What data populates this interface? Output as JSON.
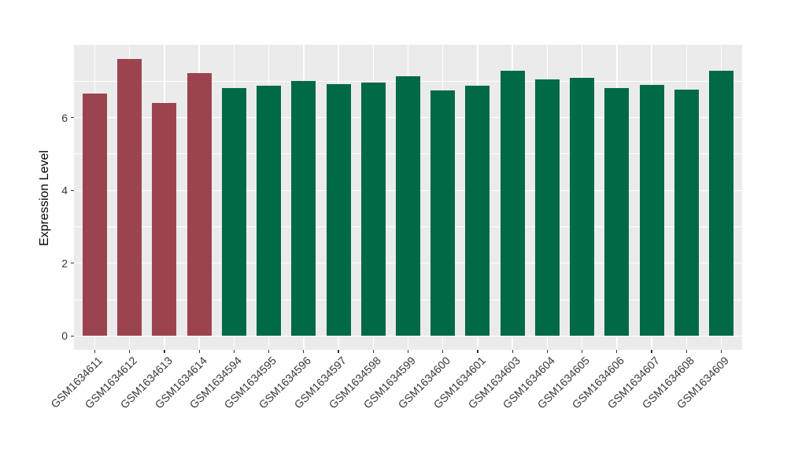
{
  "chart_data": {
    "type": "bar",
    "title": "",
    "xlabel": "",
    "ylabel": "Expression Level",
    "ylim": [
      -0.38,
      8.0
    ],
    "yticks": [
      0,
      2,
      4,
      6
    ],
    "ygrid_minor": [
      1,
      3,
      5,
      7
    ],
    "grid": "on",
    "legend": "none",
    "panel_background": "#EBEBEB",
    "gridline_color": "#FFFFFF",
    "tick_color": "#333333",
    "categories": [
      "GSM1634611",
      "GSM1634612",
      "GSM1634613",
      "GSM1634614",
      "GSM1634594",
      "GSM1634595",
      "GSM1634596",
      "GSM1634597",
      "GSM1634598",
      "GSM1634599",
      "GSM1634600",
      "GSM1634601",
      "GSM1634603",
      "GSM1634604",
      "GSM1634605",
      "GSM1634606",
      "GSM1634607",
      "GSM1634608",
      "GSM1634609"
    ],
    "values": [
      6.66,
      7.61,
      6.41,
      7.23,
      6.82,
      6.88,
      7.01,
      6.93,
      6.97,
      7.14,
      6.75,
      6.87,
      7.29,
      7.06,
      7.1,
      6.81,
      6.9,
      6.76,
      7.29
    ],
    "bar_group_index": [
      0,
      0,
      0,
      0,
      1,
      1,
      1,
      1,
      1,
      1,
      1,
      1,
      1,
      1,
      1,
      1,
      1,
      1,
      1
    ],
    "group_colors": [
      "#9B4450",
      "#006946"
    ]
  }
}
